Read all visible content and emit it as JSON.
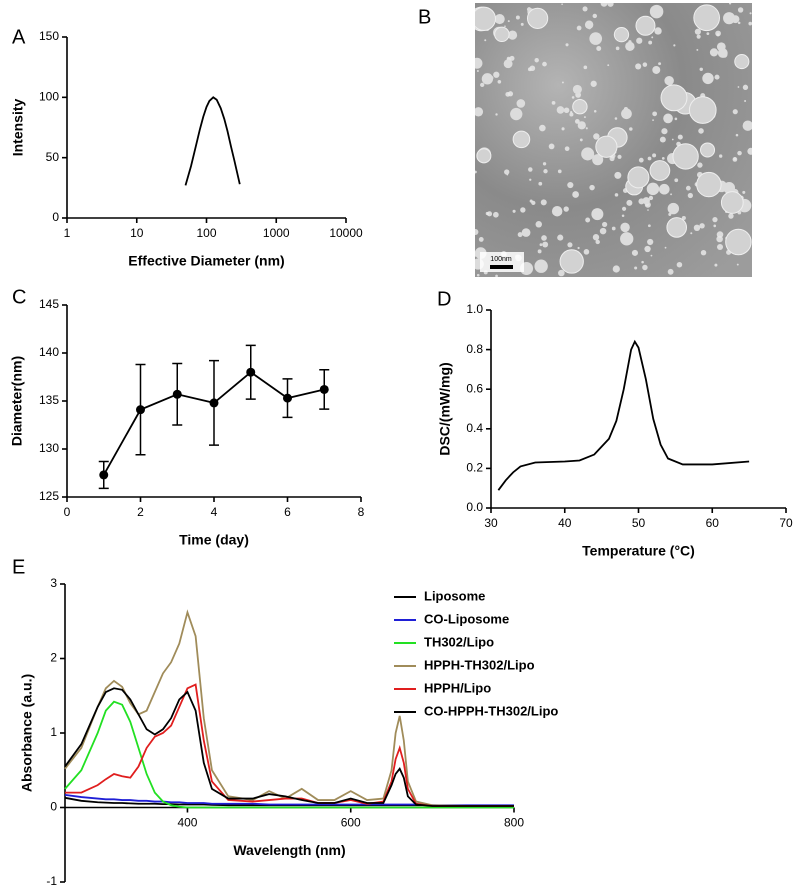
{
  "chart_data": [
    {
      "type": "line",
      "label": "A",
      "xlabel": "Effective Diameter (nm)",
      "ylabel": "Intensity",
      "xscale": "log",
      "xlim": [
        1,
        10000
      ],
      "xticks": [
        1,
        10,
        100,
        1000,
        10000
      ],
      "ylim": [
        0,
        150
      ],
      "yticks": [
        0,
        50,
        100,
        150
      ],
      "color": "#000000",
      "x": [
        50,
        60,
        70,
        80,
        90,
        100,
        110,
        125,
        140,
        160,
        180,
        200,
        225,
        250,
        300
      ],
      "values": [
        27,
        43,
        59,
        73,
        84,
        92,
        97,
        100,
        98,
        91,
        82,
        72,
        59,
        48,
        28
      ]
    },
    {
      "type": "line",
      "label": "C",
      "xlabel": "Time (day)",
      "ylabel": "Diameter(nm)",
      "xlim": [
        0,
        8
      ],
      "xticks": [
        0,
        2,
        4,
        6,
        8
      ],
      "ylim": [
        125,
        145
      ],
      "yticks": [
        125,
        130,
        135,
        140,
        145
      ],
      "color": "#000000",
      "markers": true,
      "x": [
        1,
        2,
        3,
        4,
        5,
        6,
        7
      ],
      "values": [
        127.3,
        134.1,
        135.7,
        134.8,
        138.0,
        135.3,
        136.2
      ],
      "errors": [
        1.4,
        4.7,
        3.2,
        4.4,
        2.8,
        2.0,
        2.05
      ]
    },
    {
      "type": "line",
      "label": "D",
      "xlabel": "Temperature (°C)",
      "ylabel": "DSC/(mW/mg)",
      "xlim": [
        30,
        70
      ],
      "xticks": [
        30,
        40,
        50,
        60,
        70
      ],
      "ylim": [
        0,
        1.0
      ],
      "yticks": [
        {
          "value": 0,
          "label": "0.0"
        },
        0.2,
        0.4,
        0.6,
        0.8,
        {
          "value": 1.0,
          "label": "1.0"
        }
      ],
      "color": "#000000",
      "x": [
        31,
        32,
        33,
        34,
        36,
        40,
        42,
        44,
        46,
        47,
        48,
        49,
        49.5,
        50,
        51,
        52,
        53,
        54,
        56,
        60,
        65
      ],
      "values": [
        0.09,
        0.14,
        0.18,
        0.21,
        0.23,
        0.235,
        0.24,
        0.27,
        0.35,
        0.44,
        0.6,
        0.8,
        0.84,
        0.81,
        0.65,
        0.45,
        0.32,
        0.25,
        0.22,
        0.22,
        0.235
      ]
    },
    {
      "type": "multiline",
      "label": "E",
      "xlabel": "Wavelength (nm)",
      "ylabel": "Absorbance (a.u.)",
      "xlim": [
        250,
        800
      ],
      "xticks": [
        400,
        600,
        800
      ],
      "ylim": [
        -1,
        3
      ],
      "yticks": [
        -1,
        0,
        1,
        2,
        3
      ],
      "legend": "right",
      "x": [
        250,
        270,
        290,
        300,
        310,
        320,
        330,
        340,
        350,
        360,
        370,
        380,
        390,
        400,
        410,
        420,
        430,
        450,
        480,
        500,
        520,
        540,
        560,
        580,
        600,
        620,
        640,
        650,
        655,
        660,
        665,
        670,
        680,
        700,
        750,
        800
      ],
      "series": [
        {
          "name": "Liposome",
          "color": "#000000",
          "values": [
            0.13,
            0.09,
            0.07,
            0.065,
            0.06,
            0.06,
            0.055,
            0.05,
            0.05,
            0.05,
            0.045,
            0.045,
            0.04,
            0.04,
            0.04,
            0.04,
            0.035,
            0.03,
            0.03,
            0.03,
            0.03,
            0.03,
            0.03,
            0.03,
            0.03,
            0.03,
            0.03,
            0.03,
            0.03,
            0.03,
            0.03,
            0.03,
            0.03,
            0.03,
            0.02,
            0.02
          ]
        },
        {
          "name": "CO-Liposome",
          "color": "#1f1fd6",
          "values": [
            0.17,
            0.14,
            0.12,
            0.11,
            0.11,
            0.1,
            0.1,
            0.09,
            0.09,
            0.08,
            0.08,
            0.07,
            0.07,
            0.06,
            0.06,
            0.06,
            0.05,
            0.05,
            0.05,
            0.04,
            0.04,
            0.04,
            0.04,
            0.04,
            0.04,
            0.04,
            0.04,
            0.04,
            0.04,
            0.04,
            0.04,
            0.04,
            0.04,
            0.03,
            0.03,
            0.03
          ]
        },
        {
          "name": "TH302/Lipo",
          "color": "#22e022",
          "values": [
            0.25,
            0.5,
            1.0,
            1.3,
            1.42,
            1.38,
            1.15,
            0.8,
            0.45,
            0.2,
            0.08,
            0.03,
            0.01,
            0,
            0,
            0,
            0,
            0,
            0,
            0,
            0,
            0,
            0,
            0,
            0,
            0,
            0,
            0,
            0,
            0,
            0,
            0,
            0,
            0,
            0,
            0
          ]
        },
        {
          "name": "HPPH-TH302/Lipo",
          "color": "#a08c5a",
          "values": [
            0.52,
            0.8,
            1.35,
            1.6,
            1.7,
            1.62,
            1.4,
            1.25,
            1.3,
            1.55,
            1.8,
            1.95,
            2.2,
            2.62,
            2.3,
            1.2,
            0.5,
            0.15,
            0.1,
            0.22,
            0.12,
            0.25,
            0.1,
            0.1,
            0.22,
            0.1,
            0.12,
            0.5,
            1.0,
            1.23,
            0.9,
            0.35,
            0.08,
            0.03,
            0.02,
            0.02
          ]
        },
        {
          "name": "HPPH/Lipo",
          "color": "#e01e1e",
          "values": [
            0.2,
            0.2,
            0.3,
            0.38,
            0.45,
            0.42,
            0.4,
            0.55,
            0.8,
            0.95,
            1.0,
            1.1,
            1.35,
            1.6,
            1.65,
            0.9,
            0.35,
            0.1,
            0.08,
            0.1,
            0.12,
            0.12,
            0.06,
            0.06,
            0.1,
            0.05,
            0.08,
            0.35,
            0.65,
            0.8,
            0.6,
            0.25,
            0.05,
            0.02,
            0.02,
            0.02
          ]
        },
        {
          "name": "CO-HPPH-TH302/Lipo",
          "color": "#000000",
          "values": [
            0.55,
            0.85,
            1.35,
            1.55,
            1.6,
            1.58,
            1.45,
            1.25,
            1.05,
            0.98,
            1.05,
            1.2,
            1.45,
            1.55,
            1.3,
            0.6,
            0.25,
            0.12,
            0.12,
            0.18,
            0.15,
            0.1,
            0.06,
            0.06,
            0.12,
            0.06,
            0.06,
            0.3,
            0.45,
            0.52,
            0.4,
            0.15,
            0.04,
            0.02,
            0.02,
            0.02
          ]
        }
      ]
    }
  ],
  "image": {
    "label": "B",
    "scale_bar": "100nm"
  }
}
